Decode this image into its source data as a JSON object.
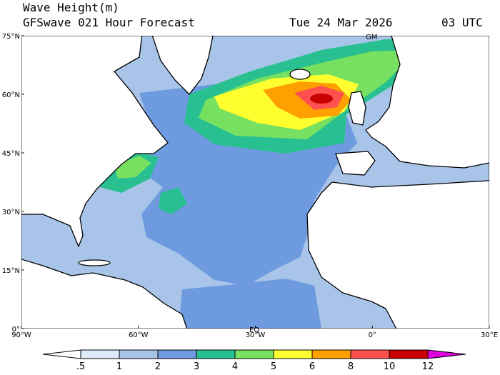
{
  "header": {
    "title": "Wave Height(m)",
    "subtitle": "GFSwave 021 Hour Forecast",
    "date": "Tue 24 Mar 2026",
    "time": "03 UTC"
  },
  "map": {
    "lat_labels": [
      "75°N",
      "60°N",
      "45°N",
      "30°N",
      "15°N",
      "0°"
    ],
    "lon_labels": [
      "90°W",
      "60°W",
      "30°W",
      "0°",
      "30°E"
    ],
    "markers": [
      "GM",
      "EQ"
    ]
  },
  "colorbar": {
    "labels": [
      ".5",
      "1",
      "2",
      "3",
      "4",
      "5",
      "6",
      "8",
      "10",
      "12"
    ],
    "colors": [
      "#ffffff",
      "#dce9f7",
      "#a8c4e8",
      "#6e9be0",
      "#28c090",
      "#78e060",
      "#ffff30",
      "#ffa000",
      "#ff5050",
      "#c80000",
      "#e000e0"
    ]
  }
}
